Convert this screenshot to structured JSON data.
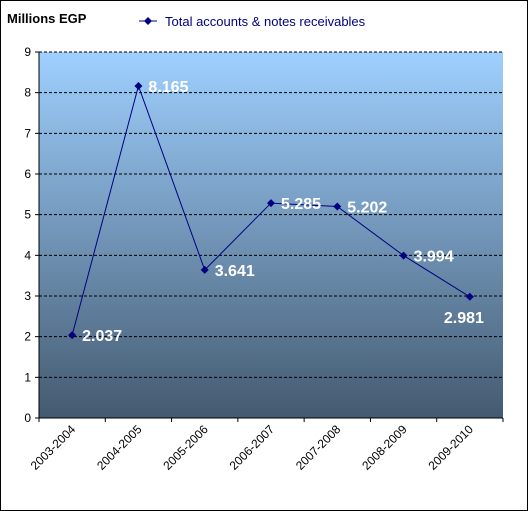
{
  "unit_label": "Millions EGP",
  "colors": {
    "plot_top": "#9fd0ff",
    "plot_bottom": "#445a70",
    "series": "#000080",
    "grid": "#000000",
    "data_label": "#ffffff"
  },
  "chart_data": {
    "type": "line",
    "categories": [
      "2003-2004",
      "2004-2005",
      "2005-2006",
      "2006-2007",
      "2007-2008",
      "2008-2009",
      "2009-2010"
    ],
    "series": [
      {
        "name": "Total accounts & notes receivables",
        "values": [
          2.037,
          8.165,
          3.641,
          5.285,
          5.202,
          3.994,
          2.981
        ],
        "labels": [
          "2.037",
          "8.165",
          "3.641",
          "5.285",
          "5.202",
          "3.994",
          "2.981"
        ]
      }
    ],
    "ylim": [
      0,
      9
    ],
    "yticks": [
      "0",
      "1",
      "2",
      "3",
      "4",
      "5",
      "6",
      "7",
      "8",
      "9"
    ],
    "grid": "horizontal dashed",
    "legend_position": "top",
    "marker": "diamond"
  }
}
